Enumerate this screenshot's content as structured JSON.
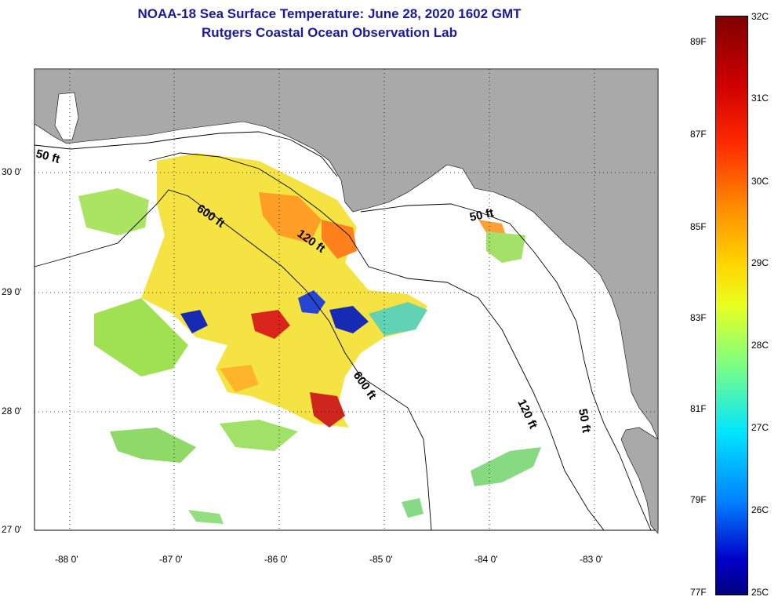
{
  "title": {
    "line1": "NOAA-18 Sea Surface Temperature:  June 28, 2020 1602 GMT",
    "line2": "Rutgers Coastal Ocean Observation Lab"
  },
  "map": {
    "lat_labels": [
      "30 0'",
      "29 0'",
      "28 0'",
      "27 0'"
    ],
    "lon_labels": [
      "-88 0'",
      "-87 0'",
      "-86 0'",
      "-85 0'",
      "-84 0'",
      "-83 0'"
    ],
    "contour_labels": {
      "c50_west": "50 ft",
      "c600_north": "600 ft",
      "c120_north": "120 ft",
      "c50_east": "50 ft",
      "c600_south": "600 ft",
      "c120_south": "120 ft",
      "c50_south": "50 ft"
    }
  },
  "colorbar": {
    "fahrenheit": [
      "89F",
      "87F",
      "85F",
      "83F",
      "81F",
      "79F",
      "77F"
    ],
    "celsius": [
      "32C",
      "31C",
      "30C",
      "29C",
      "28C",
      "27C",
      "26C",
      "25C"
    ]
  },
  "colors": {
    "land": "#a9a9a9",
    "water": "#ffffff",
    "title": "#1a1a9e"
  }
}
